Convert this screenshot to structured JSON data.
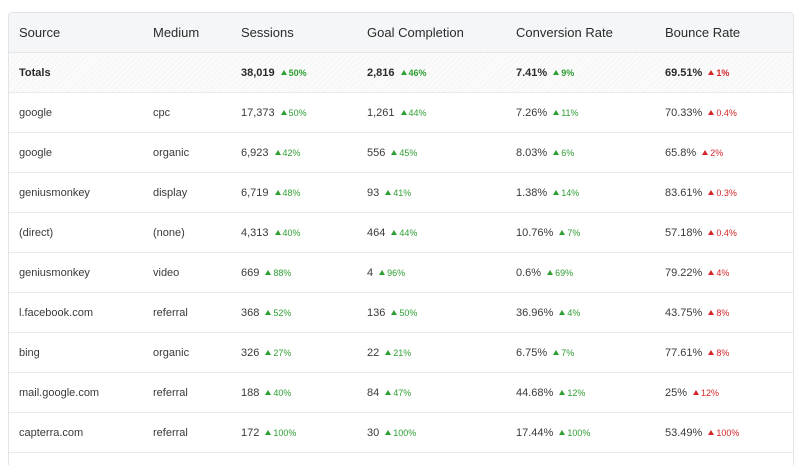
{
  "colors": {
    "positive": "#2e9e33",
    "negative": "#d6262b",
    "header_bg": "#f5f6f7",
    "border": "#e1e4e8"
  },
  "table": {
    "headers": [
      "Source",
      "Medium",
      "Sessions",
      "Goal Completion",
      "Conversion Rate",
      "Bounce Rate"
    ],
    "totals": {
      "label": "Totals",
      "sessions": "38,019",
      "sessions_delta": "50%",
      "goal": "2,816",
      "goal_delta": "46%",
      "conv": "7.41%",
      "conv_delta": "9%",
      "bounce": "69.51%",
      "bounce_delta": "1%"
    },
    "rows": [
      {
        "source": "google",
        "medium": "cpc",
        "sessions": "17,373",
        "sessions_delta": "50%",
        "goal": "1,261",
        "goal_delta": "44%",
        "conv": "7.26%",
        "conv_delta": "11%",
        "bounce": "70.33%",
        "bounce_delta": "0.4%"
      },
      {
        "source": "google",
        "medium": "organic",
        "sessions": "6,923",
        "sessions_delta": "42%",
        "goal": "556",
        "goal_delta": "45%",
        "conv": "8.03%",
        "conv_delta": "6%",
        "bounce": "65.8%",
        "bounce_delta": "2%"
      },
      {
        "source": "geniusmonkey",
        "medium": "display",
        "sessions": "6,719",
        "sessions_delta": "48%",
        "goal": "93",
        "goal_delta": "41%",
        "conv": "1.38%",
        "conv_delta": "14%",
        "bounce": "83.61%",
        "bounce_delta": "0.3%"
      },
      {
        "source": "(direct)",
        "medium": "(none)",
        "sessions": "4,313",
        "sessions_delta": "40%",
        "goal": "464",
        "goal_delta": "44%",
        "conv": "10.76%",
        "conv_delta": "7%",
        "bounce": "57.18%",
        "bounce_delta": "0.4%"
      },
      {
        "source": "geniusmonkey",
        "medium": "video",
        "sessions": "669",
        "sessions_delta": "88%",
        "goal": "4",
        "goal_delta": "96%",
        "conv": "0.6%",
        "conv_delta": "69%",
        "bounce": "79.22%",
        "bounce_delta": "4%"
      },
      {
        "source": "l.facebook.com",
        "medium": "referral",
        "sessions": "368",
        "sessions_delta": "52%",
        "goal": "136",
        "goal_delta": "50%",
        "conv": "36.96%",
        "conv_delta": "4%",
        "bounce": "43.75%",
        "bounce_delta": "8%"
      },
      {
        "source": "bing",
        "medium": "organic",
        "sessions": "326",
        "sessions_delta": "27%",
        "goal": "22",
        "goal_delta": "21%",
        "conv": "6.75%",
        "conv_delta": "7%",
        "bounce": "77.61%",
        "bounce_delta": "8%"
      },
      {
        "source": "mail.google.com",
        "medium": "referral",
        "sessions": "188",
        "sessions_delta": "40%",
        "goal": "84",
        "goal_delta": "47%",
        "conv": "44.68%",
        "conv_delta": "12%",
        "bounce": "25%",
        "bounce_delta": "12%"
      },
      {
        "source": "capterra.com",
        "medium": "referral",
        "sessions": "172",
        "sessions_delta": "100%",
        "goal": "30",
        "goal_delta": "100%",
        "conv": "17.44%",
        "conv_delta": "100%",
        "bounce": "53.49%",
        "bounce_delta": "100%"
      }
    ]
  }
}
